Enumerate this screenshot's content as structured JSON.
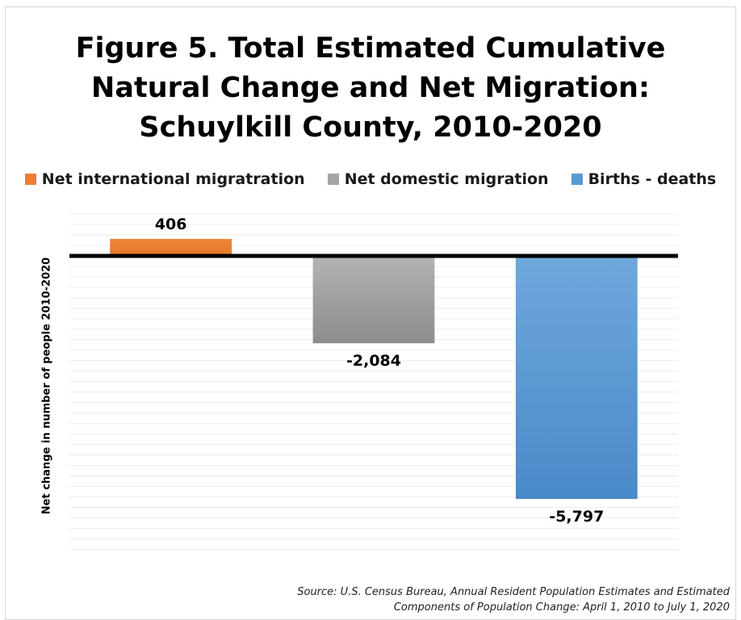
{
  "title_lines": [
    "Figure 5. Total Estimated Cumulative",
    "Natural Change and Net Migration:",
    "Schuylkill County, 2010-2020"
  ],
  "source_lines": [
    "Source: U.S. Census Bureau, Annual Resident Population Estimates and Estimated",
    "Components of Population Change: April 1, 2010 to July 1, 2020"
  ],
  "chart_data": {
    "type": "bar",
    "title": "Figure 5. Total Estimated Cumulative Natural Change and Net Migration: Schuylkill County, 2010-2020",
    "ylabel": "Net change in number of people 2010-2020",
    "xlabel": "",
    "categories": [
      "Net international migratration",
      "Net domestic migration",
      "Births  - deaths"
    ],
    "values": [
      406,
      -2084,
      -5797
    ],
    "value_labels": [
      "406",
      "-2,084",
      "-5,797"
    ],
    "colors": [
      "#ed7d31",
      "#a5a5a5",
      "#5b9bd5"
    ],
    "ylim": [
      -7000,
      1000
    ],
    "grid": true,
    "legend_position": "top"
  }
}
